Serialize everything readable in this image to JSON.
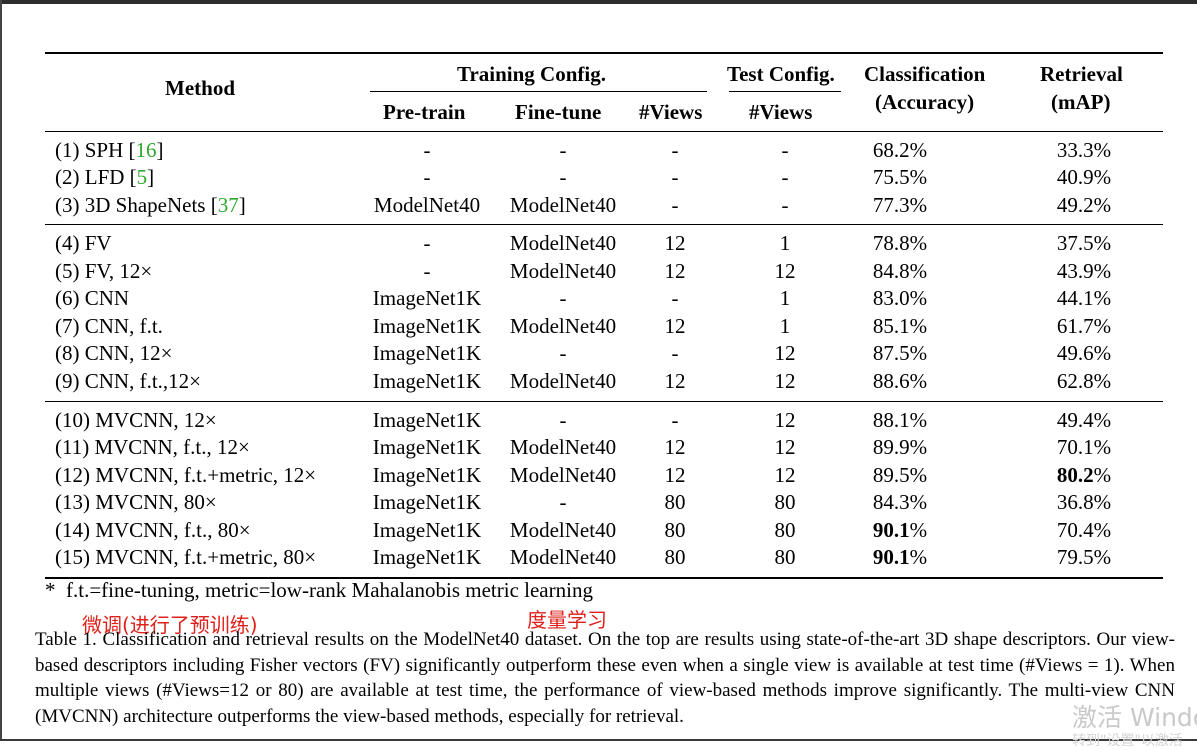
{
  "table": {
    "headers": {
      "method": "Method",
      "training_config": "Training Config.",
      "test_config": "Test Config.",
      "classification": "Classification",
      "classification_sub": "(Accuracy)",
      "retrieval": "Retrieval",
      "retrieval_sub": "(mAP)",
      "pretrain": "Pre-train",
      "finetune": "Fine-tune",
      "train_views": "#Views",
      "test_views": "#Views"
    },
    "rows": [
      {
        "method": "(1) SPH [",
        "ref": "16",
        "tail": "]",
        "pretrain": "-",
        "finetune": "-",
        "train_views": "-",
        "test_views": "-",
        "acc": "68.2%",
        "map": "33.3%"
      },
      {
        "method": "(2) LFD [",
        "ref": "5",
        "tail": "]",
        "pretrain": "-",
        "finetune": "-",
        "train_views": "-",
        "test_views": "-",
        "acc": "75.5%",
        "map": "40.9%"
      },
      {
        "method": "(3) 3D ShapeNets [",
        "ref": "37",
        "tail": "]",
        "pretrain": "ModelNet40",
        "finetune": "ModelNet40",
        "train_views": "-",
        "test_views": "-",
        "acc": "77.3%",
        "map": "49.2%"
      },
      {
        "method": "(4) FV",
        "ref": "",
        "tail": "",
        "pretrain": "-",
        "finetune": "ModelNet40",
        "train_views": "12",
        "test_views": "1",
        "acc": "78.8%",
        "map": "37.5%"
      },
      {
        "method": "(5) FV, 12×",
        "ref": "",
        "tail": "",
        "pretrain": "-",
        "finetune": "ModelNet40",
        "train_views": "12",
        "test_views": "12",
        "acc": "84.8%",
        "map": "43.9%"
      },
      {
        "method": "(6) CNN",
        "ref": "",
        "tail": "",
        "pretrain": "ImageNet1K",
        "finetune": "-",
        "train_views": "-",
        "test_views": "1",
        "acc": "83.0%",
        "map": "44.1%"
      },
      {
        "method": "(7) CNN, f.t.",
        "ref": "",
        "tail": "",
        "pretrain": "ImageNet1K",
        "finetune": "ModelNet40",
        "train_views": "12",
        "test_views": "1",
        "acc": "85.1%",
        "map": "61.7%"
      },
      {
        "method": "(8) CNN, 12×",
        "ref": "",
        "tail": "",
        "pretrain": "ImageNet1K",
        "finetune": "-",
        "train_views": "-",
        "test_views": "12",
        "acc": "87.5%",
        "map": "49.6%"
      },
      {
        "method": "(9) CNN, f.t.,12×",
        "ref": "",
        "tail": "",
        "pretrain": "ImageNet1K",
        "finetune": "ModelNet40",
        "train_views": "12",
        "test_views": "12",
        "acc": "88.6%",
        "map": "62.8%"
      },
      {
        "method": "(10) MVCNN, 12×",
        "ref": "",
        "tail": "",
        "pretrain": "ImageNet1K",
        "finetune": "-",
        "train_views": "-",
        "test_views": "12",
        "acc": "88.1%",
        "map": "49.4%"
      },
      {
        "method": "(11) MVCNN, f.t., 12×",
        "ref": "",
        "tail": "",
        "pretrain": "ImageNet1K",
        "finetune": "ModelNet40",
        "train_views": "12",
        "test_views": "12",
        "acc": "89.9%",
        "map": "70.1%"
      },
      {
        "method": "(12) MVCNN, f.t.+metric, 12×",
        "ref": "",
        "tail": "",
        "pretrain": "ImageNet1K",
        "finetune": "ModelNet40",
        "train_views": "12",
        "test_views": "12",
        "acc": "89.5%",
        "map": "80.2",
        "map_bold": true
      },
      {
        "method": "(13) MVCNN, 80×",
        "ref": "",
        "tail": "",
        "pretrain": "ImageNet1K",
        "finetune": "-",
        "train_views": "80",
        "test_views": "80",
        "acc": "84.3%",
        "map": "36.8%"
      },
      {
        "method": "(14) MVCNN, f.t., 80×",
        "ref": "",
        "tail": "",
        "pretrain": "ImageNet1K",
        "finetune": "ModelNet40",
        "train_views": "80",
        "test_views": "80",
        "acc": "90.1",
        "acc_bold": true,
        "map": "70.4%"
      },
      {
        "method": "(15) MVCNN, f.t.+metric, 80×",
        "ref": "",
        "tail": "",
        "pretrain": "ImageNet1K",
        "finetune": "ModelNet40",
        "train_views": "80",
        "test_views": "80",
        "acc": "90.1",
        "acc_bold": true,
        "map": "79.5%"
      }
    ]
  },
  "footnote": {
    "star": "*",
    "text": "f.t.=fine-tuning, metric=low-rank Mahalanobis metric learning"
  },
  "annotations": {
    "finetune_note": "微调(进行了预训练)",
    "metric_note": "度量学习"
  },
  "caption": "Table 1. Classification and retrieval results on the ModelNet40 dataset. On the top are results using state-of-the-art 3D shape descriptors. Our view-based descriptors including Fisher vectors (FV) significantly outperform these even when a single view is available at test time (#Views = 1). When multiple views (#Views=12 or 80) are available at test time, the performance of view-based methods improve significantly. The multi-view CNN (MVCNN) architecture outperforms the view-based methods, especially for retrieval.",
  "watermark": {
    "line1": "激活 Windo",
    "line2": "转到\"设置\"以激活"
  }
}
